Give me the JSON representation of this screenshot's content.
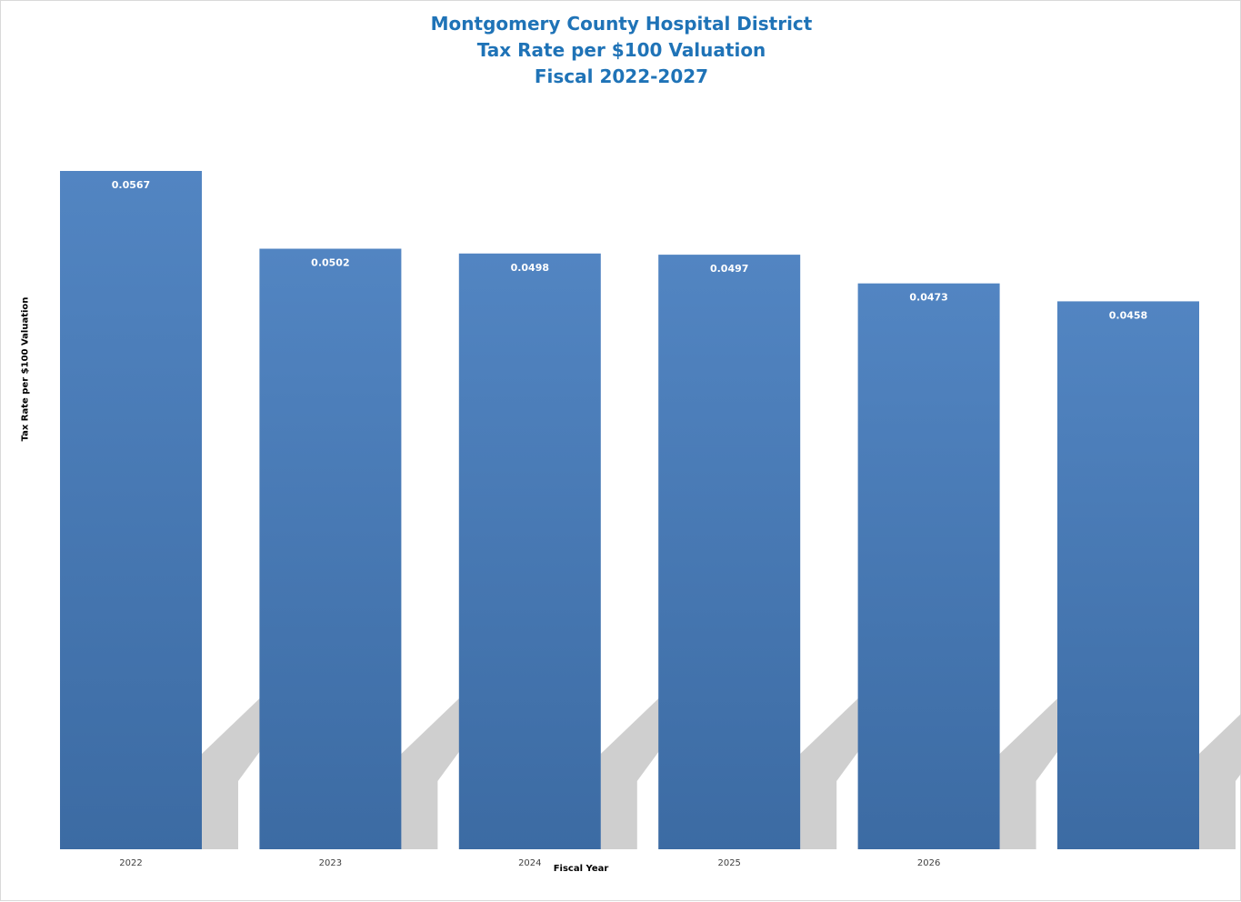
{
  "chart_data": {
    "type": "bar",
    "title": [
      "Montgomery County Hospital District",
      "Tax Rate per $100 Valuation",
      "Fiscal 2022-2027"
    ],
    "xlabel": "Fiscal Year",
    "ylabel": "Tax Rate per $100 Valuation",
    "categories": [
      "2022",
      "2023",
      "2024",
      "2025",
      "2026",
      ""
    ],
    "values": [
      0.0567,
      0.0502,
      0.0498,
      0.0497,
      0.0473,
      0.0458
    ],
    "data_labels": [
      "0.0567",
      "0.0502",
      "0.0498",
      "0.0497",
      "0.0473",
      "0.0458"
    ],
    "ylim": [
      0,
      0.0567
    ],
    "grid": false,
    "legend": "none",
    "colors": {
      "bar_top": "#5285c2",
      "bar_bottom": "#3c6ba3",
      "shadow": "#cfcfcf",
      "title": "#1f73b7",
      "data_label": "#ffffff",
      "tick_label": "#404040"
    }
  }
}
